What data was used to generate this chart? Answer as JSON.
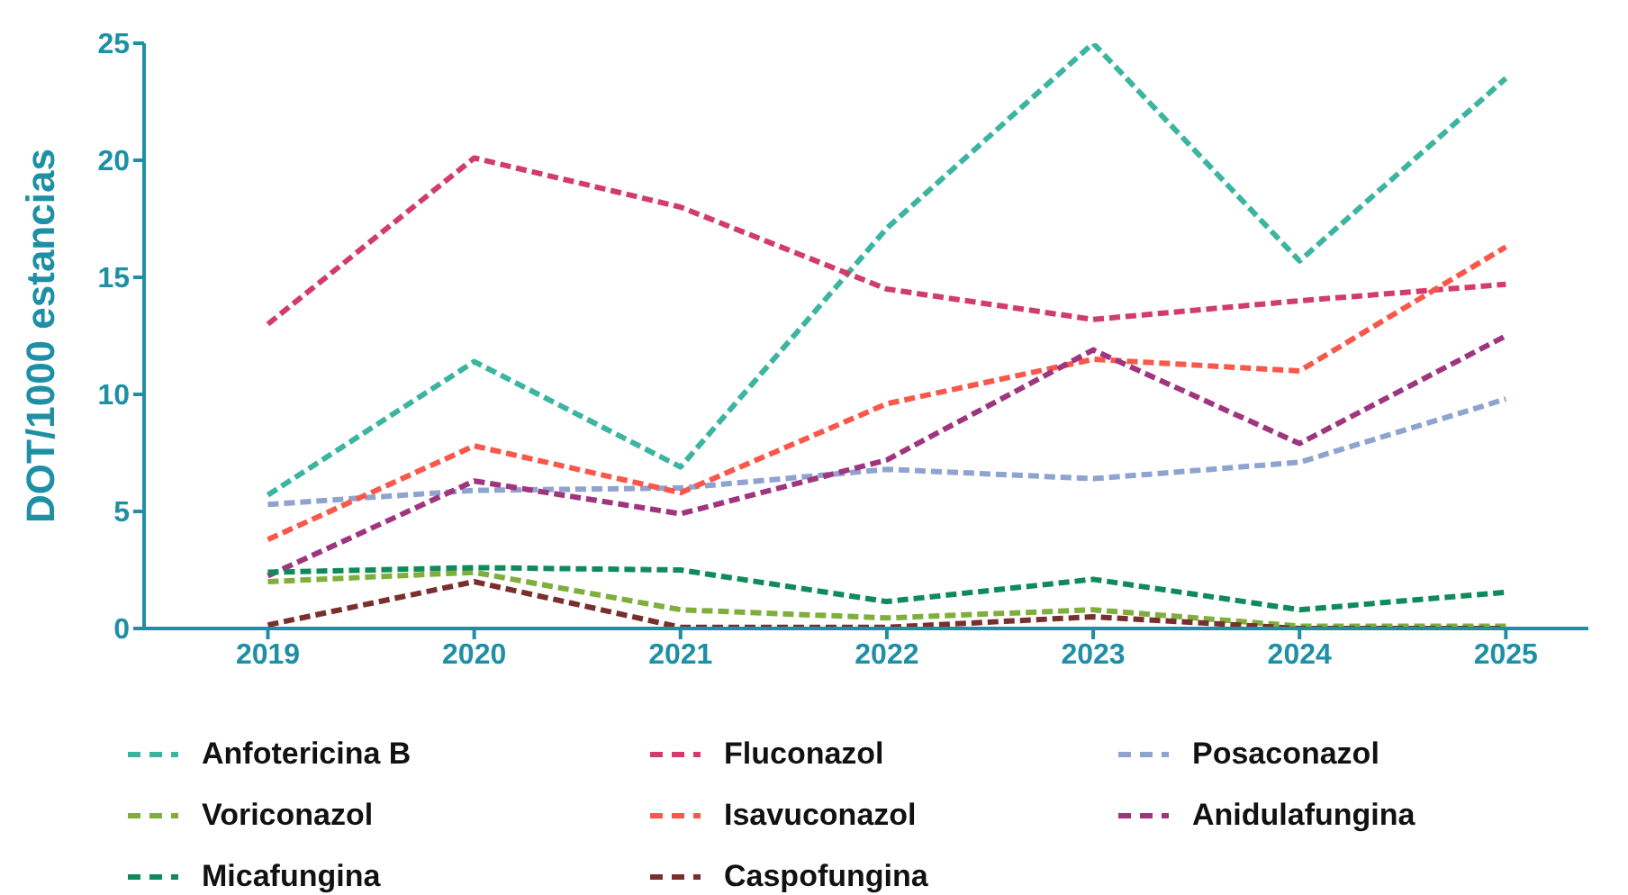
{
  "chart_data": {
    "type": "line",
    "ylabel": "DOT/1000 estancias",
    "categories": [
      "2019",
      "2020",
      "2021",
      "2022",
      "2023",
      "2024",
      "2025"
    ],
    "series": [
      {
        "name": "Anfotericina B",
        "color": "#3bb5a0",
        "values": [
          5.7,
          11.4,
          6.9,
          17.1,
          25,
          15.7,
          23.5
        ]
      },
      {
        "name": "Fluconazol",
        "color": "#d23c6b",
        "values": [
          13.0,
          20.1,
          18.0,
          14.5,
          13.2,
          14.0,
          14.7
        ]
      },
      {
        "name": "Posaconazol",
        "color": "#8fa3d0",
        "values": [
          5.3,
          5.9,
          6.0,
          6.8,
          6.4,
          7.1,
          9.8
        ]
      },
      {
        "name": "Voriconazol",
        "color": "#7fae3c",
        "values": [
          2.0,
          2.4,
          0.8,
          0.45,
          0.8,
          0.1,
          0.1
        ]
      },
      {
        "name": "Isavuconazol",
        "color": "#f9574a",
        "values": [
          3.8,
          7.8,
          5.8,
          9.6,
          11.5,
          11.0,
          16.3
        ]
      },
      {
        "name": "Anidulafungina",
        "color": "#a0357f",
        "values": [
          2.25,
          6.3,
          4.9,
          7.2,
          11.9,
          7.9,
          12.5
        ]
      },
      {
        "name": "Micafungina",
        "color": "#0f8a5a",
        "values": [
          2.4,
          2.6,
          2.5,
          1.15,
          2.1,
          0.8,
          1.55
        ]
      },
      {
        "name": "Caspofungina",
        "color": "#7a2f2f",
        "values": [
          0.15,
          2.0,
          0.05,
          0.05,
          0.5,
          0,
          0
        ]
      }
    ],
    "ylim": [
      0,
      25
    ],
    "yticks": [
      0,
      5,
      10,
      15,
      20,
      25
    ],
    "grid": false,
    "legend": "bottom",
    "marker": "none",
    "line_style": "dashed"
  }
}
